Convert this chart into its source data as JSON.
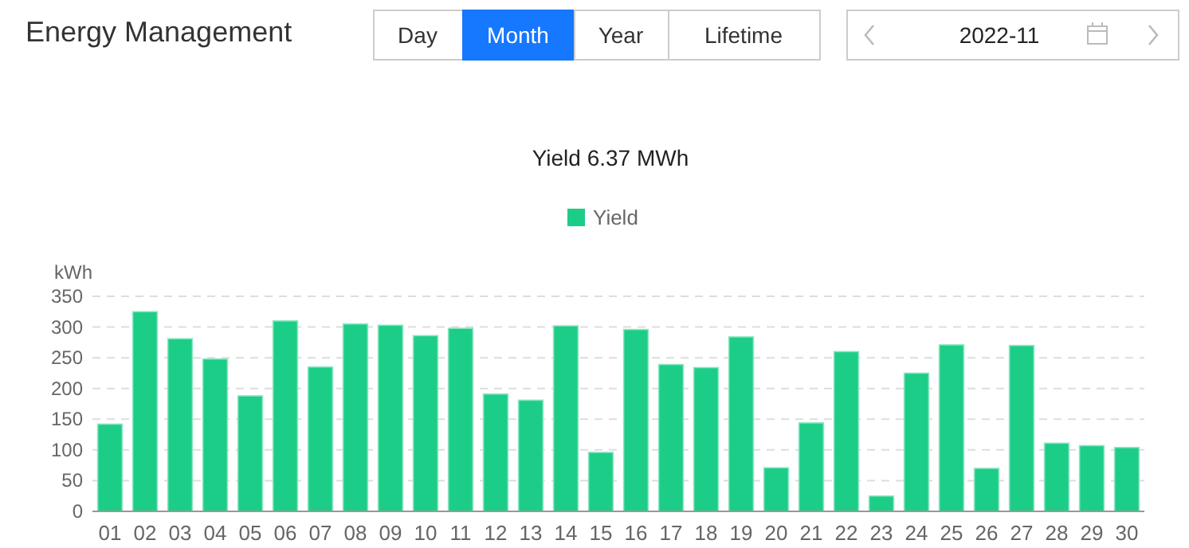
{
  "chart_data": {
    "type": "bar",
    "title": "Energy Management",
    "subtitle": "Yield 6.37 MWh",
    "ylabel": "kWh",
    "annotations": [
      "Day",
      "Month",
      "Year",
      "Lifetime",
      "2022-11"
    ],
    "categories": [
      "01",
      "02",
      "03",
      "04",
      "05",
      "06",
      "07",
      "08",
      "09",
      "10",
      "11",
      "12",
      "13",
      "14",
      "15",
      "16",
      "17",
      "18",
      "19",
      "20",
      "21",
      "22",
      "23",
      "24",
      "25",
      "26",
      "27",
      "28",
      "29",
      "30"
    ],
    "series": [
      {
        "name": "Yield",
        "color": "#1ccd88",
        "values": [
          142,
          325,
          281,
          248,
          188,
          310,
          235,
          305,
          303,
          286,
          298,
          191,
          181,
          302,
          96,
          296,
          239,
          234,
          284,
          71,
          144,
          260,
          25,
          225,
          271,
          70,
          270,
          111,
          107,
          104
        ]
      }
    ],
    "ylim": [
      0,
      350
    ],
    "yticks": [
      0,
      50,
      100,
      150,
      200,
      250,
      300,
      350
    ],
    "grid": "y",
    "legend": "top"
  }
}
